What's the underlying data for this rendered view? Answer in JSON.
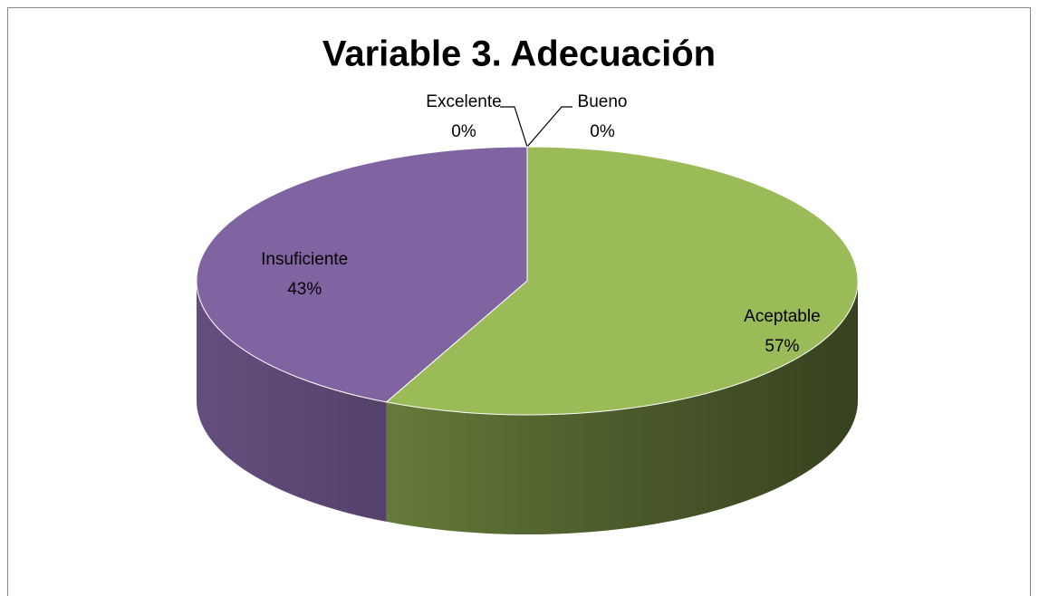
{
  "chart_data": {
    "type": "pie3d",
    "title": "Variable 3. Adecuación",
    "categories": [
      "Excelente",
      "Bueno",
      "Aceptable",
      "Insuficiente"
    ],
    "values": [
      0,
      0,
      57,
      43
    ],
    "value_labels": [
      "0%",
      "0%",
      "57%",
      "43%"
    ],
    "colors": [
      "#4f81bd",
      "#c0504d",
      "#9bbb59",
      "#8064a2"
    ]
  }
}
